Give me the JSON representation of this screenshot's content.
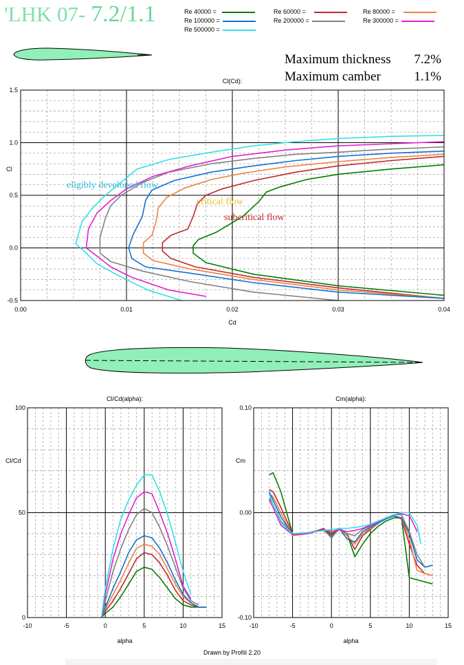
{
  "header": {
    "title_prefix": "'LHK 07- ",
    "title_main": "7.2/1.1",
    "stats": [
      {
        "label": "Maximum thickness",
        "value": "7.2%"
      },
      {
        "label": "Maximum camber",
        "value": "1.1%"
      }
    ]
  },
  "legend": [
    {
      "label": "Re 40000 =",
      "color": "#007d00"
    },
    {
      "label": "Re 60000 =",
      "color": "#c02828"
    },
    {
      "label": "Re 80000 =",
      "color": "#f08040"
    },
    {
      "label": "Re 100000 =",
      "color": "#1070d0"
    },
    {
      "label": "Re 200000 =",
      "color": "#808080"
    },
    {
      "label": "Re 300000 =",
      "color": "#e020d0"
    },
    {
      "label": "Re 500000 =",
      "color": "#30e0e8"
    }
  ],
  "footer": "Drawn by Profili 2.20",
  "chart_data": [
    {
      "type": "line",
      "title": "Cl(Cd):",
      "xlabel": "Cd",
      "ylabel": "Cl",
      "xlim": [
        0,
        0.04
      ],
      "ylim": [
        -0.5,
        1.5
      ],
      "xticks": [
        "0.00",
        "0.01",
        "0.02",
        "0.03",
        "0.04"
      ],
      "yticks": [
        "-0.5",
        "0.0",
        "0.5",
        "1.0",
        "1.5"
      ],
      "grid": true,
      "annotations": [
        {
          "text": "eligibly  developed  flow",
          "color": "#30b8d8"
        },
        {
          "text": "critical  flow",
          "color": "#e8c020"
        },
        {
          "text": "subcritical  flow",
          "color": "#c02828"
        }
      ],
      "series": [
        {
          "name": "Re 40000",
          "color": "#007d00",
          "x": [
            0.04,
            0.03,
            0.022,
            0.0175,
            0.0163,
            0.0163,
            0.0168,
            0.0185,
            0.021,
            0.0225,
            0.0232,
            0.0245,
            0.027,
            0.03,
            0.035,
            0.04
          ],
          "y": [
            -0.45,
            -0.36,
            -0.25,
            -0.14,
            -0.05,
            0.02,
            0.08,
            0.15,
            0.3,
            0.44,
            0.53,
            0.58,
            0.65,
            0.7,
            0.75,
            0.79
          ]
        },
        {
          "name": "Re 60000",
          "color": "#c02828",
          "x": [
            0.04,
            0.03,
            0.022,
            0.0165,
            0.0142,
            0.0134,
            0.0134,
            0.0142,
            0.0158,
            0.0163,
            0.0167,
            0.0175,
            0.019,
            0.022,
            0.026,
            0.03,
            0.035,
            0.04
          ],
          "y": [
            -0.48,
            -0.38,
            -0.28,
            -0.18,
            -0.1,
            -0.03,
            0.05,
            0.12,
            0.18,
            0.3,
            0.42,
            0.5,
            0.56,
            0.64,
            0.72,
            0.78,
            0.83,
            0.87
          ]
        },
        {
          "name": "Re 80000",
          "color": "#f08040",
          "x": [
            0.04,
            0.03,
            0.022,
            0.016,
            0.0125,
            0.0116,
            0.0116,
            0.0124,
            0.0128,
            0.013,
            0.0138,
            0.0155,
            0.018,
            0.021,
            0.025,
            0.03,
            0.035,
            0.04
          ],
          "y": [
            -0.48,
            -0.4,
            -0.3,
            -0.2,
            -0.12,
            -0.05,
            0.05,
            0.12,
            0.25,
            0.38,
            0.48,
            0.57,
            0.65,
            0.71,
            0.77,
            0.82,
            0.86,
            0.89
          ]
        },
        {
          "name": "Re 100000",
          "color": "#1070d0",
          "x": [
            0.04,
            0.03,
            0.022,
            0.016,
            0.0118,
            0.0105,
            0.0102,
            0.0106,
            0.0115,
            0.0118,
            0.0124,
            0.0145,
            0.018,
            0.022,
            0.026,
            0.03,
            0.035,
            0.04
          ],
          "y": [
            -0.48,
            -0.42,
            -0.33,
            -0.24,
            -0.18,
            -0.1,
            0.0,
            0.12,
            0.3,
            0.45,
            0.55,
            0.64,
            0.72,
            0.78,
            0.83,
            0.87,
            0.9,
            0.92
          ]
        },
        {
          "name": "Re 200000",
          "color": "#808080",
          "x": [
            0.03,
            0.022,
            0.016,
            0.0115,
            0.0085,
            0.0075,
            0.0075,
            0.008,
            0.0085,
            0.0095,
            0.0115,
            0.014,
            0.018,
            0.022,
            0.026,
            0.03,
            0.035,
            0.04
          ],
          "y": [
            -0.5,
            -0.42,
            -0.32,
            -0.22,
            -0.13,
            -0.05,
            0.1,
            0.28,
            0.4,
            0.5,
            0.62,
            0.72,
            0.8,
            0.85,
            0.89,
            0.91,
            0.94,
            0.96
          ]
        },
        {
          "name": "Re 300000",
          "color": "#e020d0",
          "x": [
            0.0175,
            0.014,
            0.0105,
            0.0085,
            0.0075,
            0.0062,
            0.0064,
            0.0072,
            0.0085,
            0.01,
            0.0125,
            0.016,
            0.02,
            0.025,
            0.03,
            0.035,
            0.04
          ],
          "y": [
            -0.46,
            -0.4,
            -0.28,
            -0.18,
            -0.1,
            0.0,
            0.18,
            0.33,
            0.45,
            0.56,
            0.68,
            0.78,
            0.87,
            0.93,
            0.97,
            0.99,
            1.01
          ]
        },
        {
          "name": "Re 500000",
          "color": "#30e0e8",
          "x": [
            0.0152,
            0.012,
            0.009,
            0.0072,
            0.0062,
            0.0052,
            0.0058,
            0.0068,
            0.008,
            0.0092,
            0.011,
            0.014,
            0.018,
            0.022,
            0.026,
            0.03,
            0.035,
            0.04
          ],
          "y": [
            -0.5,
            -0.4,
            -0.25,
            -0.15,
            -0.05,
            0.04,
            0.25,
            0.38,
            0.5,
            0.6,
            0.75,
            0.84,
            0.91,
            0.97,
            1.01,
            1.04,
            1.06,
            1.07
          ]
        }
      ]
    },
    {
      "type": "line",
      "title": "Cl/Cd(alpha):",
      "xlabel": "alpha",
      "ylabel": "Cl/Cd",
      "xlim": [
        -10,
        15
      ],
      "ylim": [
        0,
        100
      ],
      "xticks": [
        "-10",
        "-5",
        "0",
        "5",
        "10",
        "15"
      ],
      "yticks": [
        "0",
        "50",
        "100"
      ],
      "grid": true,
      "series": [
        {
          "name": "Re 40000",
          "color": "#007d00",
          "x": [
            -0.5,
            0,
            1,
            2,
            3,
            4,
            5,
            6,
            7,
            8,
            9,
            10,
            11,
            12,
            13
          ],
          "y": [
            0,
            2,
            5,
            10,
            16,
            22,
            24,
            23,
            19,
            14,
            9,
            6,
            5,
            5,
            5
          ]
        },
        {
          "name": "Re 60000",
          "color": "#c02828",
          "x": [
            -0.5,
            0,
            1,
            2,
            3,
            4,
            5,
            6,
            7,
            8,
            9,
            10,
            11,
            12,
            13
          ],
          "y": [
            0,
            3,
            8,
            14,
            21,
            28,
            31,
            30,
            26,
            20,
            13,
            8,
            6,
            5,
            5
          ]
        },
        {
          "name": "Re 80000",
          "color": "#f08040",
          "x": [
            -0.5,
            0,
            1,
            2,
            3,
            4,
            5,
            6,
            7,
            8,
            9,
            10,
            11,
            12,
            13
          ],
          "y": [
            0,
            4,
            11,
            18,
            26,
            33,
            35,
            34,
            30,
            23,
            16,
            10,
            7,
            5,
            5
          ]
        },
        {
          "name": "Re 100000",
          "color": "#1070d0",
          "x": [
            -0.5,
            0,
            1,
            2,
            3,
            4,
            5,
            6,
            7,
            8,
            9,
            10,
            11,
            12,
            13
          ],
          "y": [
            0,
            5,
            14,
            22,
            31,
            37,
            39,
            38,
            33,
            26,
            18,
            11,
            7,
            5,
            5
          ]
        },
        {
          "name": "Re 200000",
          "color": "#808080",
          "x": [
            -0.5,
            0,
            1,
            2,
            3,
            4,
            5,
            6,
            7,
            8,
            9,
            10,
            11,
            12
          ],
          "y": [
            0,
            8,
            22,
            33,
            42,
            49,
            52,
            50,
            43,
            34,
            24,
            14,
            8,
            6
          ]
        },
        {
          "name": "Re 300000",
          "color": "#e020d0",
          "x": [
            -0.5,
            0,
            1,
            2,
            3,
            4,
            5,
            6,
            7,
            8,
            9,
            10,
            11
          ],
          "y": [
            0,
            11,
            28,
            40,
            49,
            57,
            60,
            59,
            50,
            40,
            28,
            15,
            9
          ]
        },
        {
          "name": "Re 500000",
          "color": "#30e0e8",
          "x": [
            -0.5,
            0,
            1,
            2,
            3,
            4,
            5,
            6,
            7,
            8,
            9,
            10,
            11
          ],
          "y": [
            0,
            14,
            33,
            47,
            56,
            63,
            68,
            68,
            60,
            49,
            36,
            22,
            11
          ]
        }
      ]
    },
    {
      "type": "line",
      "title": "Cm(alpha):",
      "xlabel": "alpha",
      "ylabel": "Cm",
      "xlim": [
        -10,
        15
      ],
      "ylim": [
        -0.1,
        0.1
      ],
      "xticks": [
        "-10",
        "-5",
        "0",
        "5",
        "10",
        "15"
      ],
      "yticks": [
        "-0.10",
        "0.00",
        "0.10"
      ],
      "grid": true,
      "series": [
        {
          "name": "Re 40000",
          "color": "#007d00",
          "x": [
            -8,
            -7.5,
            -6.5,
            -5,
            -3,
            -1,
            0,
            1,
            2,
            3,
            4,
            5,
            6,
            7,
            8,
            9,
            10,
            11,
            12,
            13
          ],
          "y": [
            0.036,
            0.038,
            0.02,
            -0.02,
            -0.019,
            -0.016,
            -0.02,
            -0.016,
            -0.02,
            -0.042,
            -0.03,
            -0.02,
            -0.013,
            -0.008,
            -0.005,
            -0.005,
            -0.062,
            -0.064,
            -0.066,
            -0.068
          ]
        },
        {
          "name": "Re 60000",
          "color": "#c02828",
          "x": [
            -8,
            -7.5,
            -6.5,
            -5,
            -3,
            -1,
            0,
            1,
            2,
            3,
            4,
            5,
            6,
            7,
            8,
            9,
            10,
            11,
            12,
            13
          ],
          "y": [
            0.022,
            0.02,
            0.005,
            -0.02,
            -0.02,
            -0.015,
            -0.022,
            -0.015,
            -0.02,
            -0.035,
            -0.022,
            -0.016,
            -0.01,
            -0.006,
            -0.003,
            -0.006,
            -0.03,
            -0.05,
            -0.058,
            -0.06
          ]
        },
        {
          "name": "Re 80000",
          "color": "#f08040",
          "x": [
            -8,
            -7.5,
            -6.5,
            -5,
            -3,
            -1,
            0,
            1,
            2,
            3,
            4,
            5,
            6,
            7,
            8,
            9,
            10,
            11,
            12,
            13
          ],
          "y": [
            0.018,
            0.015,
            0.0,
            -0.022,
            -0.02,
            -0.016,
            -0.018,
            -0.016,
            -0.022,
            -0.03,
            -0.02,
            -0.015,
            -0.01,
            -0.005,
            -0.003,
            -0.005,
            -0.025,
            -0.055,
            -0.058,
            -0.06
          ]
        },
        {
          "name": "Re 100000",
          "color": "#1070d0",
          "x": [
            -8,
            -7.5,
            -6.5,
            -5,
            -3,
            -1,
            0,
            1,
            2,
            3,
            4,
            5,
            6,
            7,
            8,
            9,
            10,
            11,
            12,
            13
          ],
          "y": [
            0.02,
            0.012,
            -0.004,
            -0.021,
            -0.02,
            -0.016,
            -0.024,
            -0.015,
            -0.025,
            -0.028,
            -0.018,
            -0.014,
            -0.01,
            -0.006,
            -0.003,
            -0.005,
            -0.02,
            -0.045,
            -0.052,
            -0.05
          ]
        },
        {
          "name": "Re 200000",
          "color": "#808080",
          "x": [
            -8,
            -7.5,
            -6.5,
            -5,
            -3,
            -1,
            0,
            1,
            2,
            3,
            4,
            5,
            6,
            7,
            8,
            9,
            10,
            11,
            12
          ],
          "y": [
            0.014,
            0.008,
            -0.008,
            -0.021,
            -0.019,
            -0.017,
            -0.023,
            -0.016,
            -0.02,
            -0.022,
            -0.016,
            -0.013,
            -0.009,
            -0.005,
            -0.002,
            -0.002,
            -0.018,
            -0.04,
            -0.052
          ]
        },
        {
          "name": "Re 300000",
          "color": "#e020d0",
          "x": [
            -8,
            -7.5,
            -6.5,
            -5,
            -3,
            -1,
            0,
            1,
            2,
            3,
            4,
            5,
            6,
            7,
            8,
            9,
            10,
            10.5,
            11
          ],
          "y": [
            0.012,
            0.005,
            -0.012,
            -0.021,
            -0.02,
            -0.016,
            -0.018,
            -0.016,
            -0.018,
            -0.017,
            -0.015,
            -0.012,
            -0.009,
            -0.005,
            -0.002,
            -0.001,
            -0.003,
            -0.01,
            -0.018
          ]
        },
        {
          "name": "Re 500000",
          "color": "#30e0e8",
          "x": [
            -8,
            -7.5,
            -6.5,
            -5,
            -3,
            -1,
            0,
            1,
            2,
            3,
            4,
            5,
            6,
            7,
            8,
            9,
            10,
            11,
            11.5
          ],
          "y": [
            0.018,
            0.008,
            -0.01,
            -0.02,
            -0.019,
            -0.017,
            -0.016,
            -0.015,
            -0.015,
            -0.014,
            -0.013,
            -0.011,
            -0.008,
            -0.005,
            -0.002,
            0.0,
            0.0,
            -0.012,
            -0.03
          ]
        }
      ]
    }
  ]
}
